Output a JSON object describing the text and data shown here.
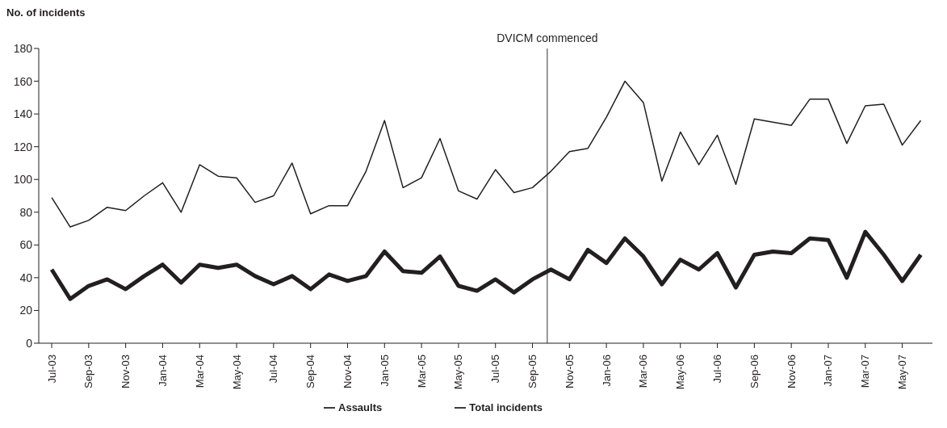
{
  "chart_data": {
    "type": "line",
    "ylabel": "No. of incidents",
    "x": [
      "2003-07",
      "2003-08",
      "2003-09",
      "2003-10",
      "2003-11",
      "2003-12",
      "2004-01",
      "2004-02",
      "2004-03",
      "2004-04",
      "2004-05",
      "2004-06",
      "2004-07",
      "2004-08",
      "2004-09",
      "2004-10",
      "2004-11",
      "2004-12",
      "2005-01",
      "2005-02",
      "2005-03",
      "2005-04",
      "2005-05",
      "2005-06",
      "2005-07",
      "2005-08",
      "2005-09",
      "2005-10",
      "2005-11",
      "2005-12",
      "2006-01",
      "2006-02",
      "2006-03",
      "2006-04",
      "2006-05",
      "2006-06",
      "2006-07",
      "2006-08",
      "2006-09",
      "2006-10",
      "2006-11",
      "2006-12",
      "2007-01",
      "2007-02",
      "2007-03",
      "2007-04",
      "2007-05",
      "2007-06"
    ],
    "series": [
      {
        "name": "Assaults",
        "color": "#231f20",
        "values": [
          45,
          27,
          35,
          39,
          33,
          41,
          48,
          37,
          48,
          46,
          48,
          41,
          36,
          41,
          33,
          42,
          38,
          41,
          56,
          44,
          43,
          53,
          35,
          32,
          39,
          31,
          39,
          45,
          39,
          57,
          49,
          64,
          53,
          36,
          51,
          45,
          55,
          34,
          54,
          56,
          55,
          64,
          63,
          40,
          68,
          54,
          38,
          54
        ]
      },
      {
        "name": "Total incidents",
        "color": "#231f20",
        "values": [
          89,
          71,
          75,
          83,
          81,
          90,
          98,
          80,
          109,
          102,
          101,
          86,
          90,
          110,
          79,
          84,
          84,
          105,
          136,
          95,
          101,
          125,
          93,
          88,
          106,
          92,
          95,
          105,
          117,
          119,
          138,
          160,
          147,
          99,
          129,
          109,
          127,
          97,
          137,
          135,
          133,
          149,
          149,
          122,
          145,
          146,
          121,
          136
        ]
      }
    ],
    "xlim": [
      "2003-06-10",
      "2007-06-20"
    ],
    "xticks": [
      {
        "value": "2003-07",
        "label": "Jul-03"
      },
      {
        "value": "2003-09",
        "label": "Sep-03"
      },
      {
        "value": "2003-11",
        "label": "Nov-03"
      },
      {
        "value": "2004-01",
        "label": "Jan-04"
      },
      {
        "value": "2004-03",
        "label": "Mar-04"
      },
      {
        "value": "2004-05",
        "label": "May-04"
      },
      {
        "value": "2004-07",
        "label": "Jul-04"
      },
      {
        "value": "2004-09",
        "label": "Sep-04"
      },
      {
        "value": "2004-11",
        "label": "Nov-04"
      },
      {
        "value": "2005-01",
        "label": "Jan-05"
      },
      {
        "value": "2005-03",
        "label": "Mar-05"
      },
      {
        "value": "2005-05",
        "label": "May-05"
      },
      {
        "value": "2005-07",
        "label": "Jul-05"
      },
      {
        "value": "2005-09",
        "label": "Sep-05"
      },
      {
        "value": "2005-11",
        "label": "Nov-05"
      },
      {
        "value": "2006-01",
        "label": "Jan-06"
      },
      {
        "value": "2006-03",
        "label": "Mar-06"
      },
      {
        "value": "2006-05",
        "label": "May-06"
      },
      {
        "value": "2006-07",
        "label": "Jul-06"
      },
      {
        "value": "2006-09",
        "label": "Sep-06"
      },
      {
        "value": "2006-11",
        "label": "Nov-06"
      },
      {
        "value": "2007-01",
        "label": "Jan-07"
      },
      {
        "value": "2007-03",
        "label": "Mar-07"
      },
      {
        "value": "2007-05",
        "label": "May-07"
      }
    ],
    "ylim": [
      0,
      180
    ],
    "yticks": [
      0,
      20,
      40,
      60,
      80,
      100,
      120,
      140,
      160,
      180
    ],
    "ref_lines": [
      {
        "axis": "x",
        "value": "2005-09-25",
        "label": "DVICM commenced",
        "color": "#555555"
      }
    ],
    "grid": false,
    "legend": "bottom",
    "marker": "none",
    "line_style": "solid"
  }
}
